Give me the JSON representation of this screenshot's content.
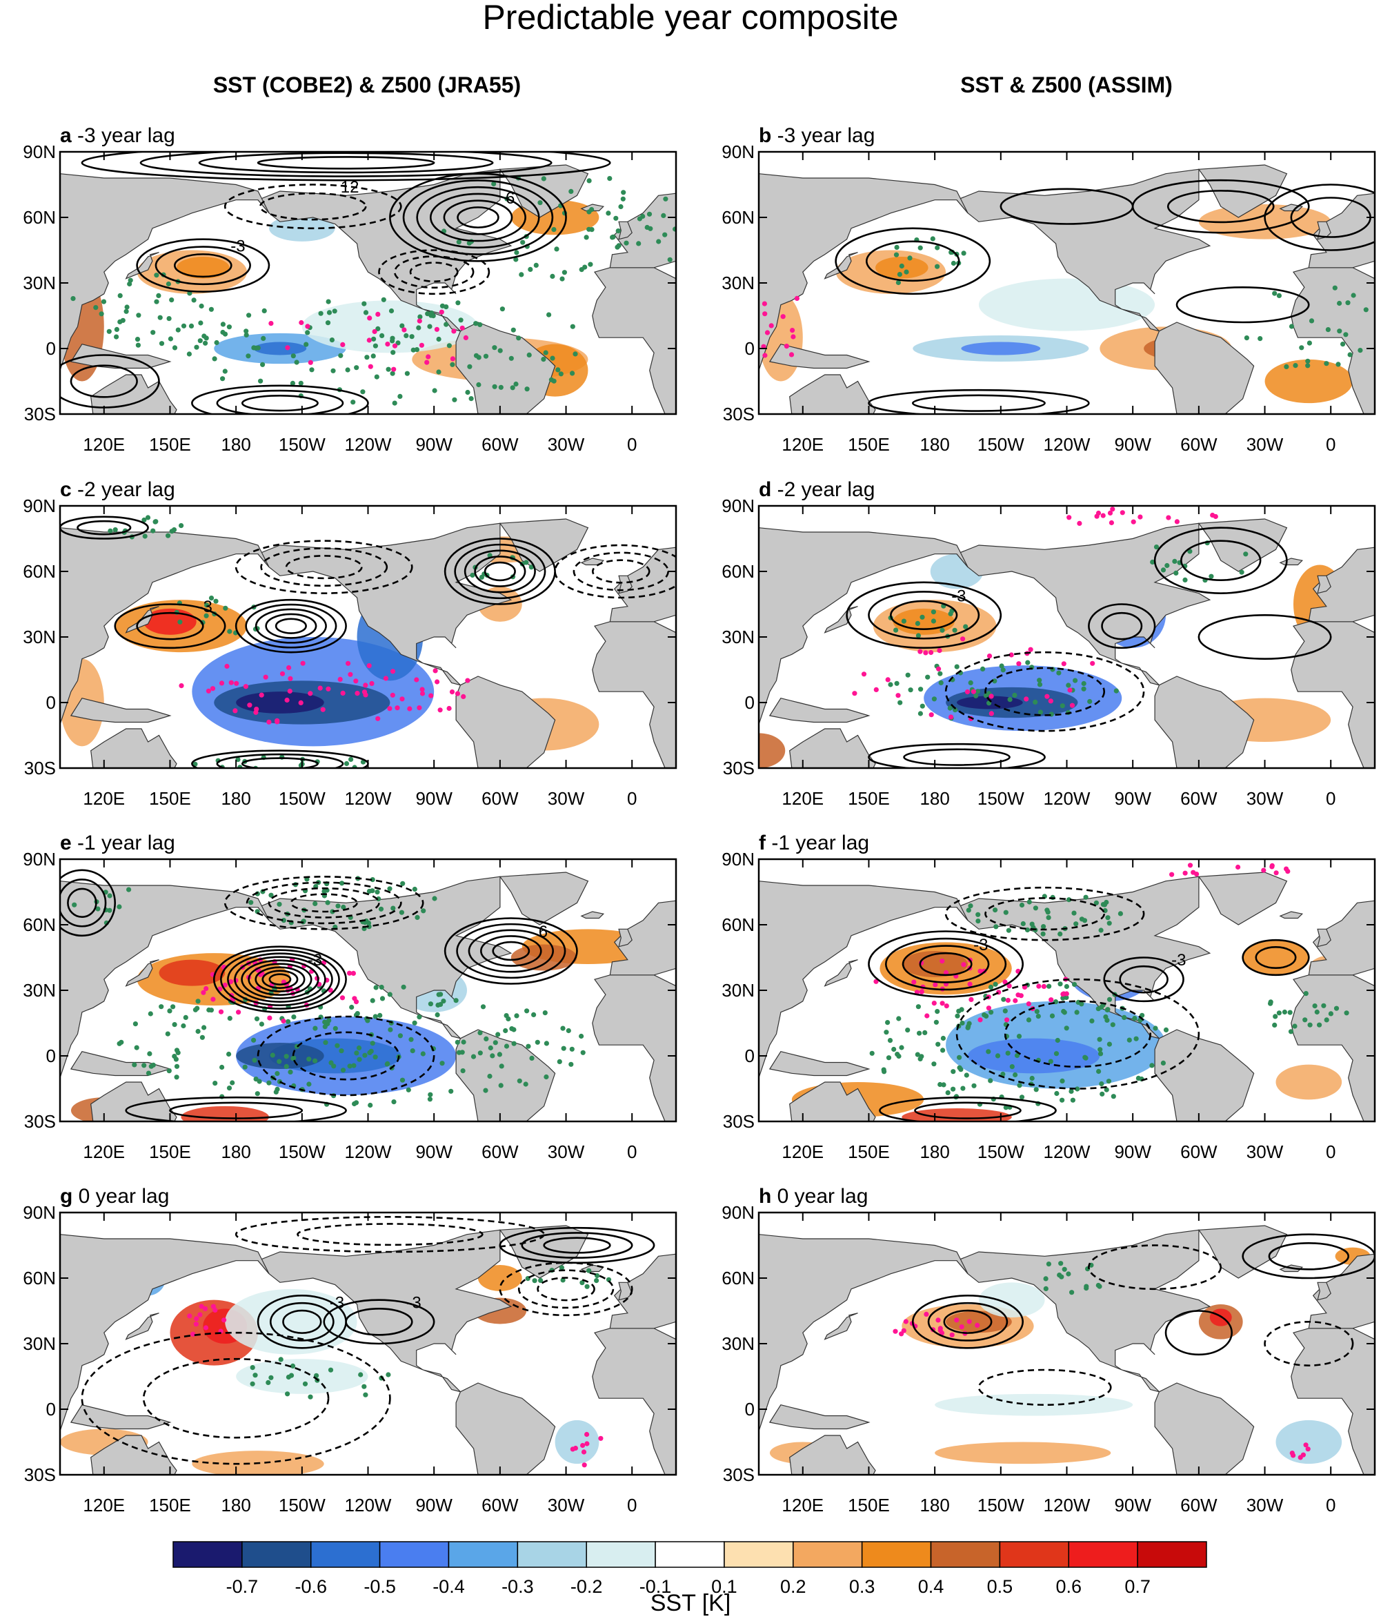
{
  "chart_data": {
    "type": "map-composite",
    "title": "Predictable year composite",
    "columns": [
      {
        "title": "SST (COBE2) & Z500 (JRA55)"
      },
      {
        "title": "SST & Z500 (ASSIM)"
      }
    ],
    "panels": [
      {
        "letter": "a",
        "label": "-3 year lag",
        "column": 0,
        "row": 0,
        "contour_labels": [
          "-3",
          "6",
          "12"
        ]
      },
      {
        "letter": "b",
        "label": "-3 year lag",
        "column": 1,
        "row": 0,
        "contour_labels": []
      },
      {
        "letter": "c",
        "label": "-2 year lag",
        "column": 0,
        "row": 1,
        "contour_labels": [
          "-3"
        ]
      },
      {
        "letter": "d",
        "label": "-2 year lag",
        "column": 1,
        "row": 1,
        "contour_labels": [
          "-3"
        ]
      },
      {
        "letter": "e",
        "label": "-1 year lag",
        "column": 0,
        "row": 2,
        "contour_labels": [
          "-3",
          "6"
        ]
      },
      {
        "letter": "f",
        "label": "-1 year lag",
        "column": 1,
        "row": 2,
        "contour_labels": [
          "-3",
          "-3"
        ]
      },
      {
        "letter": "g",
        "label": "0 year lag",
        "column": 0,
        "row": 3,
        "contour_labels": [
          "-3",
          "-3"
        ]
      },
      {
        "letter": "h",
        "label": "0 year lag",
        "column": 1,
        "row": 3,
        "contour_labels": []
      }
    ],
    "lat_ticks": [
      "90N",
      "60N",
      "30N",
      "0",
      "30S"
    ],
    "lat_values": [
      90,
      60,
      30,
      0,
      -30
    ],
    "lon_ticks": [
      "120E",
      "150E",
      "180",
      "150W",
      "120W",
      "90W",
      "60W",
      "30W",
      "0"
    ],
    "lon_values": [
      120,
      150,
      180,
      210,
      240,
      270,
      300,
      330,
      360
    ],
    "lon_range": [
      100,
      380
    ],
    "lat_range": [
      -30,
      90
    ],
    "colorbar": {
      "label": "SST [K]",
      "tick_labels": [
        "-0.7",
        "-0.6",
        "-0.5",
        "-0.4",
        "-0.3",
        "-0.2",
        "-0.1",
        "0.1",
        "0.2",
        "0.3",
        "0.4",
        "0.5",
        "0.6",
        "0.7"
      ],
      "colors": [
        "#1a1a6e",
        "#1f4e8c",
        "#2c6fd1",
        "#4a7ef0",
        "#5aa6e8",
        "#a8d4e6",
        "#d8eef0",
        "#ffffff",
        "#fde0b0",
        "#f3a860",
        "#ee8a1c",
        "#c8642a",
        "#e0361a",
        "#ee1d1d",
        "#c80a0a"
      ]
    },
    "stipple_colors": {
      "significant_sst": "#2e8b57",
      "significant_z500": "#ff1493"
    },
    "land_color": "#c8c8c8"
  }
}
